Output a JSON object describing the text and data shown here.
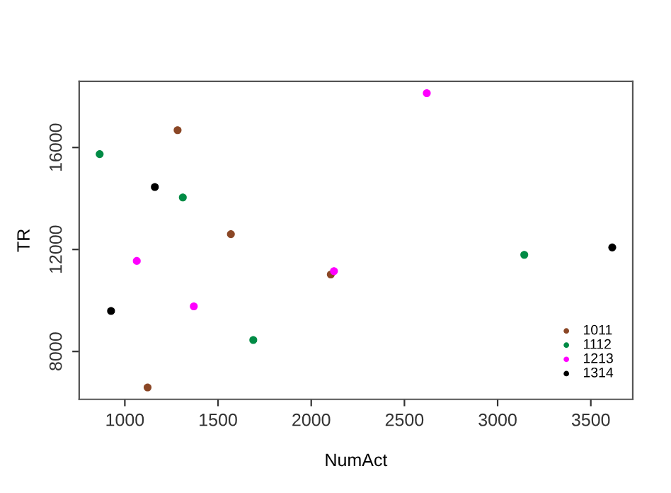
{
  "chart_data": {
    "type": "scatter",
    "xlabel": "NumAct",
    "ylabel": "TR",
    "xlim": [
      755,
      3725
    ],
    "ylim": [
      6123,
      18594
    ],
    "xticks": [
      1000,
      1500,
      2000,
      2500,
      3000,
      3500
    ],
    "yticks": [
      8000,
      12000,
      16000
    ],
    "grid": false,
    "legend": "bottom right",
    "marker": "circle",
    "series": [
      {
        "name": "1011",
        "color": "#8b4726",
        "x": [
          1283,
          1569,
          2105,
          1122
        ],
        "values": [
          16680,
          12600,
          11020,
          6590
        ]
      },
      {
        "name": "1112",
        "color": "#008b45",
        "x": [
          865,
          1311,
          1689,
          3143
        ],
        "values": [
          15740,
          14040,
          8450,
          11790
        ]
      },
      {
        "name": "1213",
        "color": "#ff00ff",
        "x": [
          2620,
          1064,
          1370,
          2122
        ],
        "values": [
          18130,
          11550,
          9770,
          11150
        ]
      },
      {
        "name": "1314",
        "color": "#000000",
        "x": [
          1161,
          926,
          3615
        ],
        "values": [
          14450,
          9590,
          12080
        ]
      }
    ]
  }
}
